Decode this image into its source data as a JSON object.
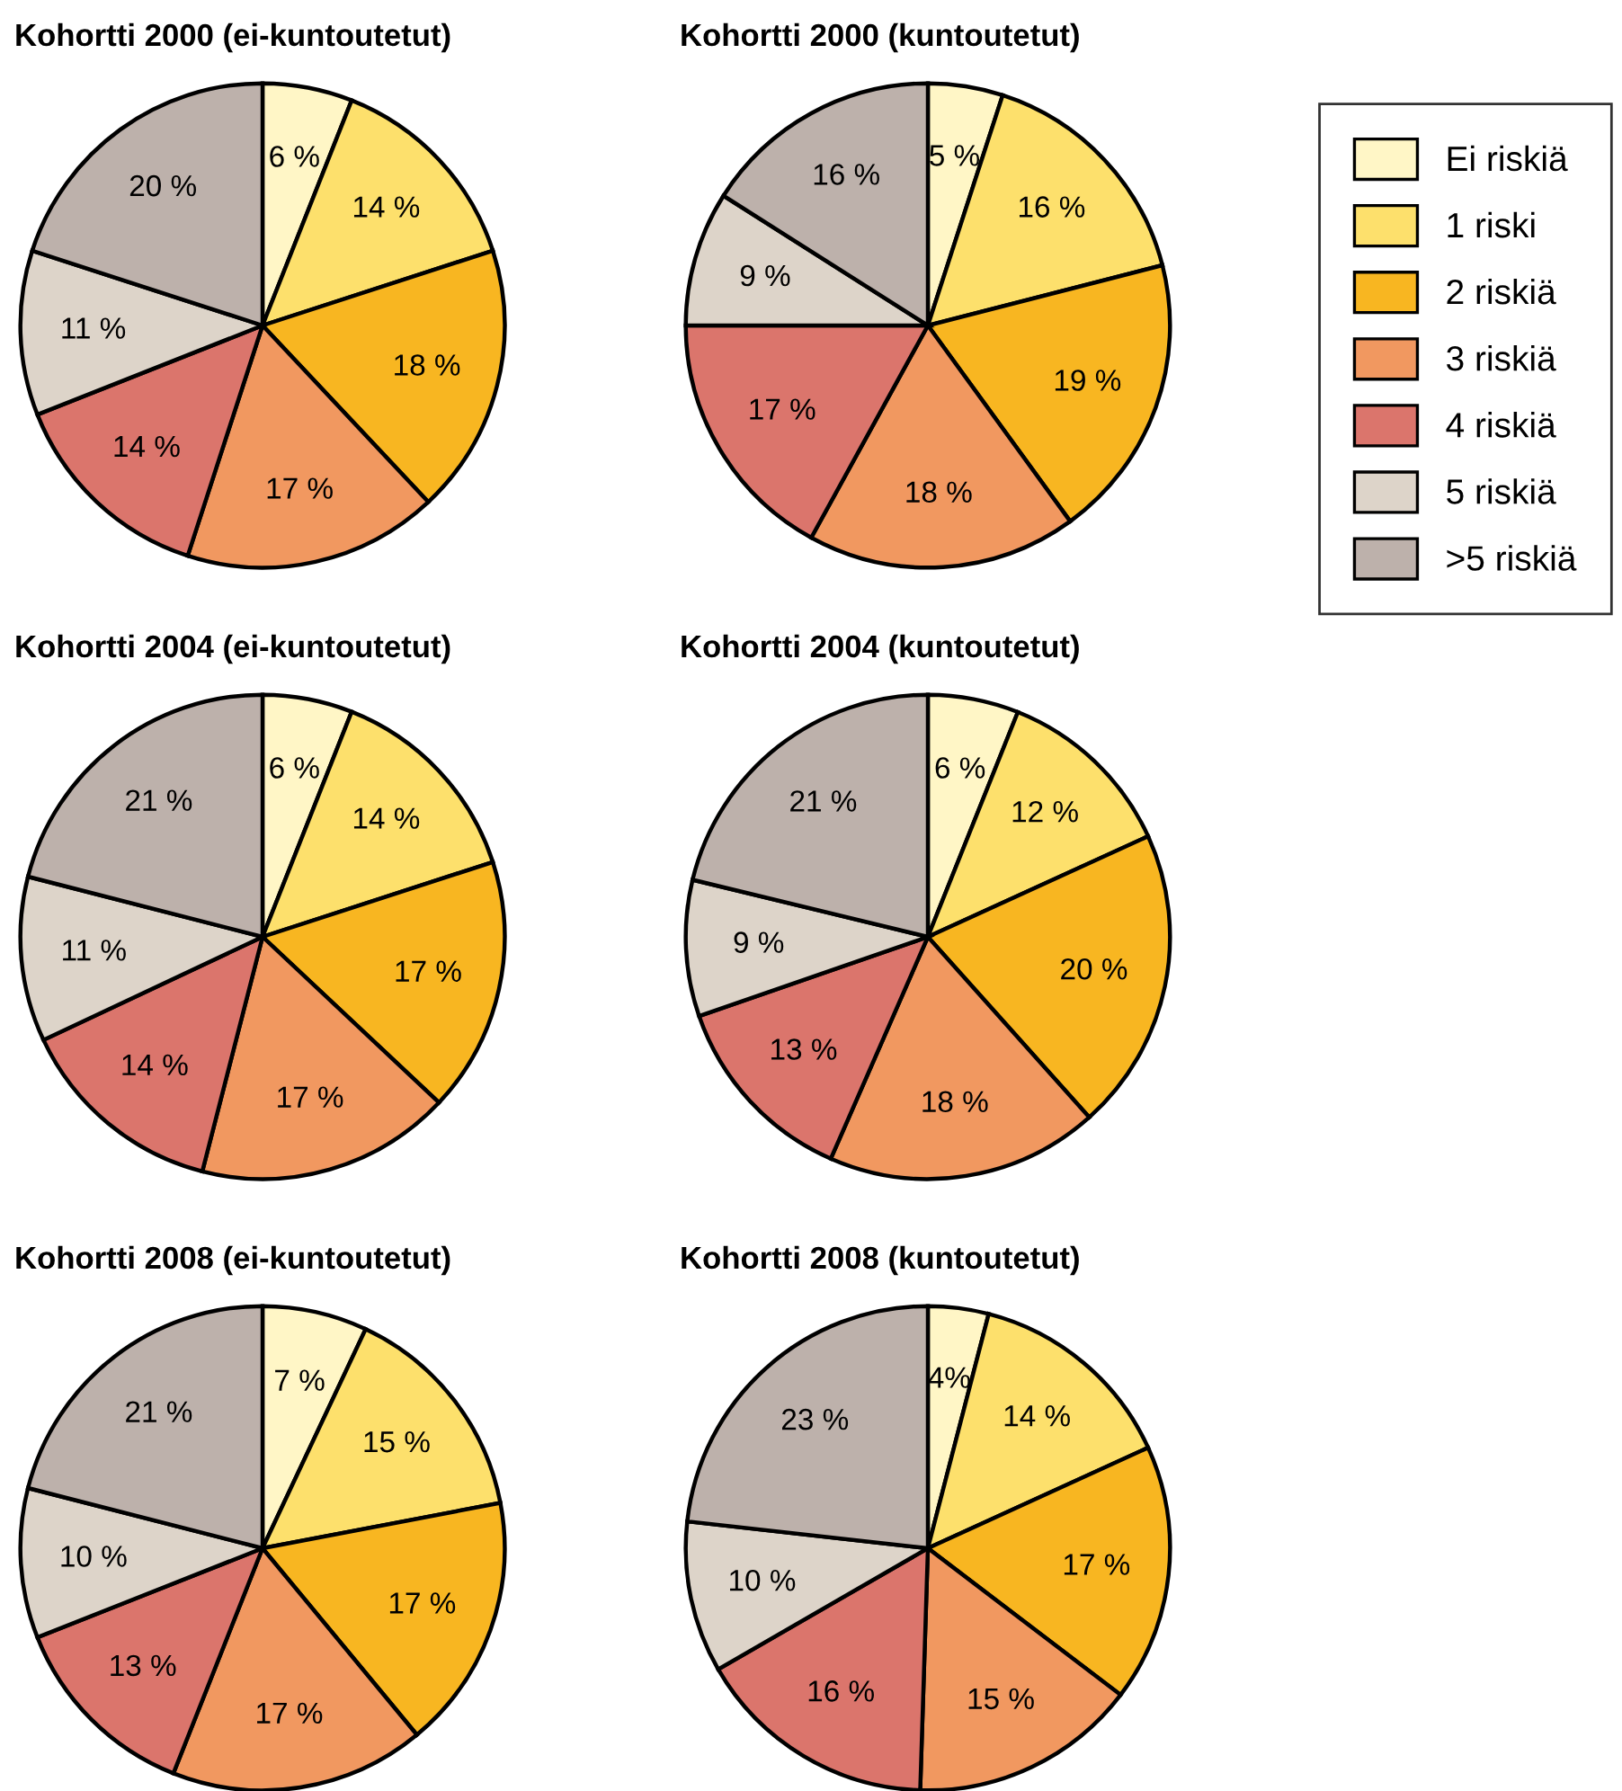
{
  "chart_data": [
    {
      "type": "pie",
      "title": "Kohortti 2000 (ei-kuntoutetut)",
      "categories": [
        "Ei riskiä",
        "1 riski",
        "2 riskiä",
        "3 riskiä",
        "4 riskiä",
        "5 riskiä",
        ">5 riskiä"
      ],
      "values": [
        6,
        14,
        18,
        17,
        14,
        11,
        20
      ],
      "value_labels": [
        "6 %",
        "14 %",
        "18 %",
        "17 %",
        "14 %",
        "11 %",
        "20 %"
      ],
      "colors": [
        "#fff6c6",
        "#fde06c",
        "#f8b621",
        "#f19860",
        "#db756c",
        "#ddd4c9",
        "#bdb1ab"
      ],
      "legend": "right"
    },
    {
      "type": "pie",
      "title": "Kohortti 2000 (kuntoutetut)",
      "categories": [
        null,
        null,
        null,
        null,
        null,
        null,
        null
      ],
      "values": [
        5,
        16,
        19,
        18,
        17,
        9,
        16
      ],
      "value_labels": [
        "5 %",
        "16 %",
        "19 %",
        "18 %",
        "17 %",
        "9 %",
        "16 %"
      ],
      "colors": [
        "#fff6c6",
        "#fde06c",
        "#f8b621",
        "#f19860",
        "#db756c",
        "#ddd4c9",
        "#bdb1ab"
      ]
    },
    {
      "type": "pie",
      "title": "Kohortti 2004 (ei-kuntoutetut)",
      "categories": [
        null,
        null,
        null,
        null,
        null,
        null,
        null
      ],
      "values": [
        6,
        14,
        17,
        17,
        14,
        11,
        21
      ],
      "value_labels": [
        "6 %",
        "14 %",
        "17 %",
        "17 %",
        "14 %",
        "11 %",
        "21 %"
      ],
      "colors": [
        "#fff6c6",
        "#fde06c",
        "#f8b621",
        "#f19860",
        "#db756c",
        "#ddd4c9",
        "#bdb1ab"
      ]
    },
    {
      "type": "pie",
      "title": "Kohortti 2004 (kuntoutetut)",
      "categories": [
        null,
        null,
        null,
        null,
        null,
        null,
        null
      ],
      "values": [
        6,
        12,
        20,
        18,
        13,
        9,
        21
      ],
      "value_labels": [
        "6 %",
        "12 %",
        "20 %",
        "18 %",
        "13 %",
        "9 %",
        "21 %"
      ],
      "colors": [
        "#fff6c6",
        "#fde06c",
        "#f8b621",
        "#f19860",
        "#db756c",
        "#ddd4c9",
        "#bdb1ab"
      ]
    },
    {
      "type": "pie",
      "title": "Kohortti 2008 (ei-kuntoutetut)",
      "categories": [
        null,
        null,
        null,
        null,
        null,
        null,
        null
      ],
      "values": [
        7,
        15,
        17,
        17,
        13,
        10,
        21
      ],
      "value_labels": [
        "7 %",
        "15 %",
        "17 %",
        "17 %",
        "13 %",
        "10 %",
        "21 %"
      ],
      "colors": [
        "#fff6c6",
        "#fde06c",
        "#f8b621",
        "#f19860",
        "#db756c",
        "#ddd4c9",
        "#bdb1ab"
      ]
    },
    {
      "type": "pie",
      "title": "Kohortti 2008 (kuntoutetut)",
      "categories": [
        null,
        null,
        null,
        null,
        null,
        null,
        null
      ],
      "values": [
        4,
        14,
        17,
        15,
        16,
        10,
        23
      ],
      "value_labels": [
        "4%",
        "14 %",
        "17 %",
        "15 %",
        "16 %",
        "10 %",
        "23 %"
      ],
      "colors": [
        "#fff6c6",
        "#fde06c",
        "#f8b621",
        "#f19860",
        "#db756c",
        "#ddd4c9",
        "#bdb1ab"
      ]
    }
  ]
}
